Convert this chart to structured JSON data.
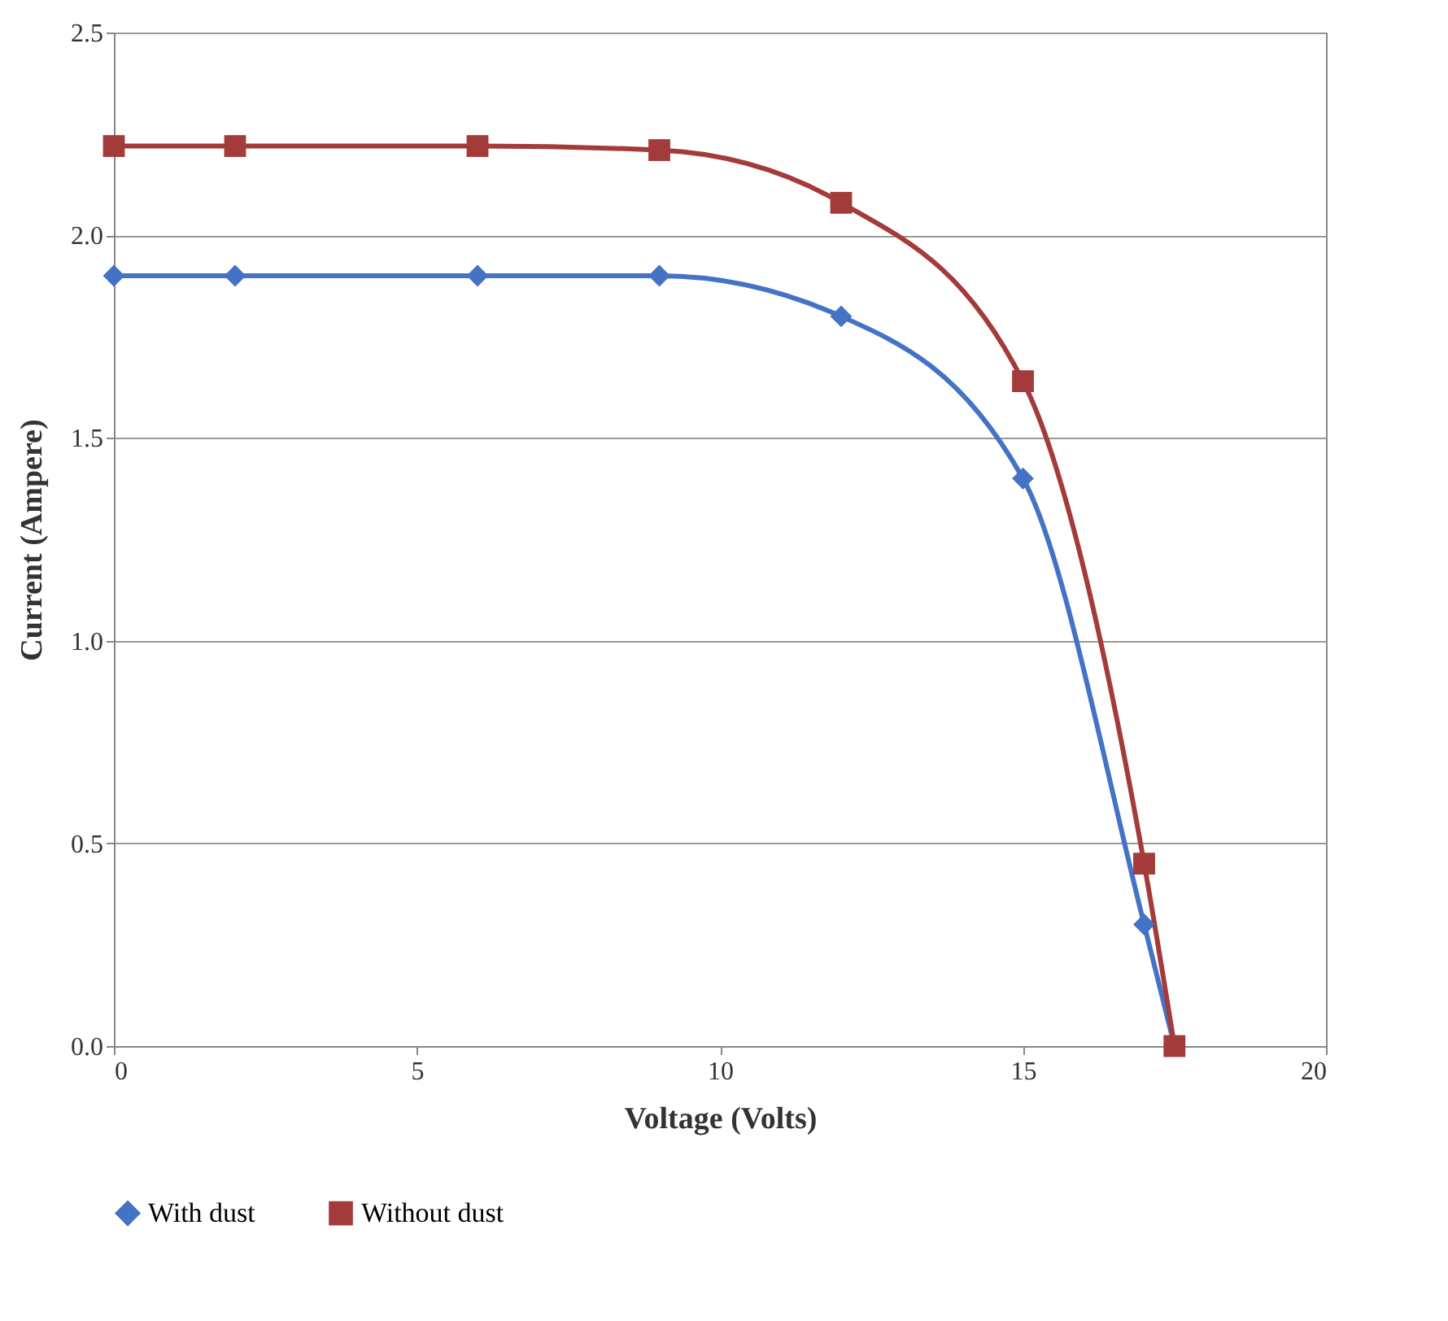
{
  "chart_data": {
    "type": "line",
    "xlabel": "Voltage (Volts)",
    "ylabel": "Current (Ampere)",
    "x": [
      0,
      2,
      6,
      9,
      12,
      15,
      17,
      17.5
    ],
    "series": [
      {
        "name": "With dust",
        "color": "#4472c4",
        "marker": "diamond",
        "values": [
          1.9,
          1.9,
          1.9,
          1.9,
          1.8,
          1.4,
          0.3,
          0
        ]
      },
      {
        "name": "Without dust",
        "color": "#a33b3a",
        "marker": "square",
        "values": [
          2.22,
          2.22,
          2.22,
          2.21,
          2.08,
          1.64,
          0.45,
          0
        ]
      }
    ],
    "xlim": [
      0,
      20
    ],
    "xticks": [
      0,
      5,
      10,
      15,
      20
    ],
    "ylim": [
      0,
      2.5
    ],
    "yticks": [
      {
        "value": 0,
        "label": "0.0"
      },
      {
        "value": 0.5,
        "label": "0.5"
      },
      {
        "value": 1,
        "label": "1.0"
      },
      {
        "value": 1.5,
        "label": "1.5"
      },
      {
        "value": 2,
        "label": "2.0"
      },
      {
        "value": 2.5,
        "label": "2.5"
      }
    ],
    "grid": "y",
    "legend": "bottom",
    "line_style": "solid"
  }
}
